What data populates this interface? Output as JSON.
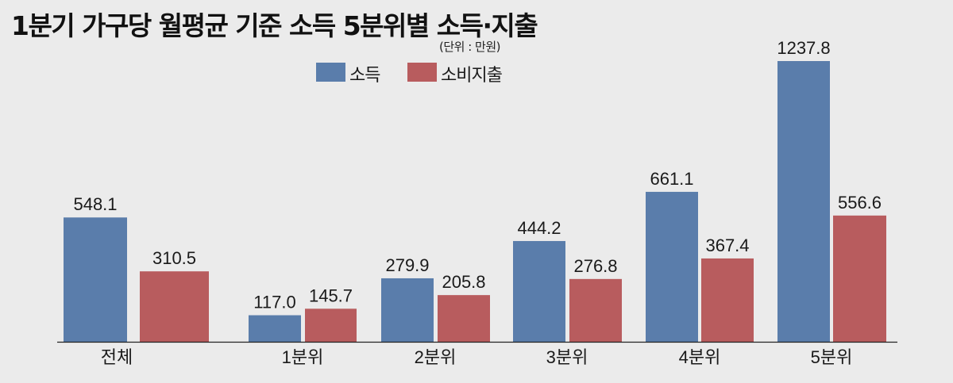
{
  "title": "1분기 가구당 월평균 기준 소득 5분위별 소득·지출",
  "unit_note": "(단위 : 만원)",
  "legend": [
    {
      "label": "소득",
      "color": "#5a7dab"
    },
    {
      "label": "소비지출",
      "color": "#b85c5e"
    }
  ],
  "chart_data": {
    "type": "bar",
    "title": "1분기 가구당 월평균 기준 소득 5분위별 소득·지출",
    "xlabel": "",
    "ylabel": "",
    "unit": "만원",
    "categories": [
      "전체",
      "1분위",
      "2분위",
      "3분위",
      "4분위",
      "5분위"
    ],
    "series": [
      {
        "name": "소득",
        "color": "#5a7dab",
        "values": [
          548.1,
          117.0,
          279.9,
          444.2,
          661.1,
          1237.8
        ],
        "labels": [
          "548.1",
          "117.0",
          "279.9",
          "444.2",
          "661.1",
          "1237.8"
        ]
      },
      {
        "name": "소비지출",
        "color": "#b85c5e",
        "values": [
          310.5,
          145.7,
          205.8,
          276.8,
          367.4,
          556.6
        ],
        "labels": [
          "310.5",
          "145.7",
          "205.8",
          "276.8",
          "367.4",
          "556.6"
        ]
      }
    ],
    "ylim": [
      0,
      1300
    ],
    "grid": false,
    "legend_position": "top-center"
  }
}
